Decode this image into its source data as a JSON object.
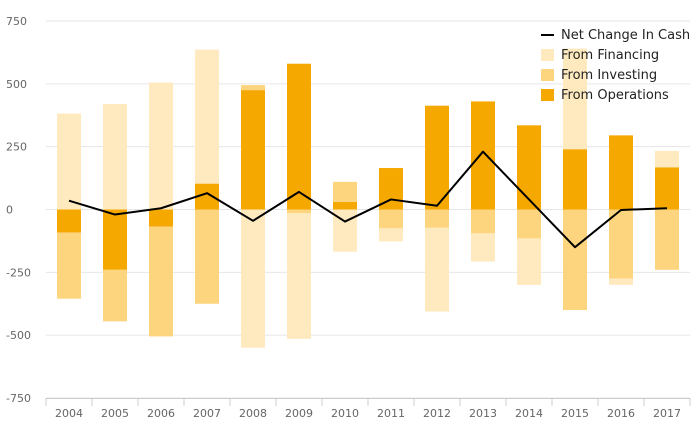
{
  "chart_data": {
    "type": "bar",
    "stacked": true,
    "categories": [
      "2004",
      "2005",
      "2006",
      "2007",
      "2008",
      "2009",
      "2010",
      "2011",
      "2012",
      "2013",
      "2014",
      "2015",
      "2016",
      "2017"
    ],
    "ylim": [
      -750,
      750
    ],
    "yticks": [
      750,
      500,
      250,
      0,
      -250,
      -500,
      -750
    ],
    "grid": true,
    "legend_position": "top-right",
    "series": [
      {
        "name": "From Operations",
        "color": "#F5A800",
        "values": [
          -92,
          -240,
          -68,
          103,
          475,
          580,
          30,
          165,
          413,
          430,
          335,
          240,
          295,
          168
        ]
      },
      {
        "name": "From Investing",
        "color": "#FDD57E",
        "values": [
          -263,
          -205,
          -437,
          -375,
          20,
          -15,
          80,
          -75,
          -73,
          -95,
          -115,
          -400,
          -275,
          -240
        ]
      },
      {
        "name": "From Financing",
        "color": "#FFEABF",
        "values": [
          382,
          420,
          505,
          533,
          -550,
          -500,
          -168,
          -52,
          -333,
          -112,
          -185,
          400,
          -25,
          65
        ]
      },
      {
        "name": "Net Change In Cash",
        "type": "line",
        "color": "#000000",
        "values": [
          35,
          -20,
          5,
          65,
          -45,
          70,
          -48,
          40,
          15,
          230,
          40,
          -150,
          -2,
          5
        ]
      }
    ]
  }
}
